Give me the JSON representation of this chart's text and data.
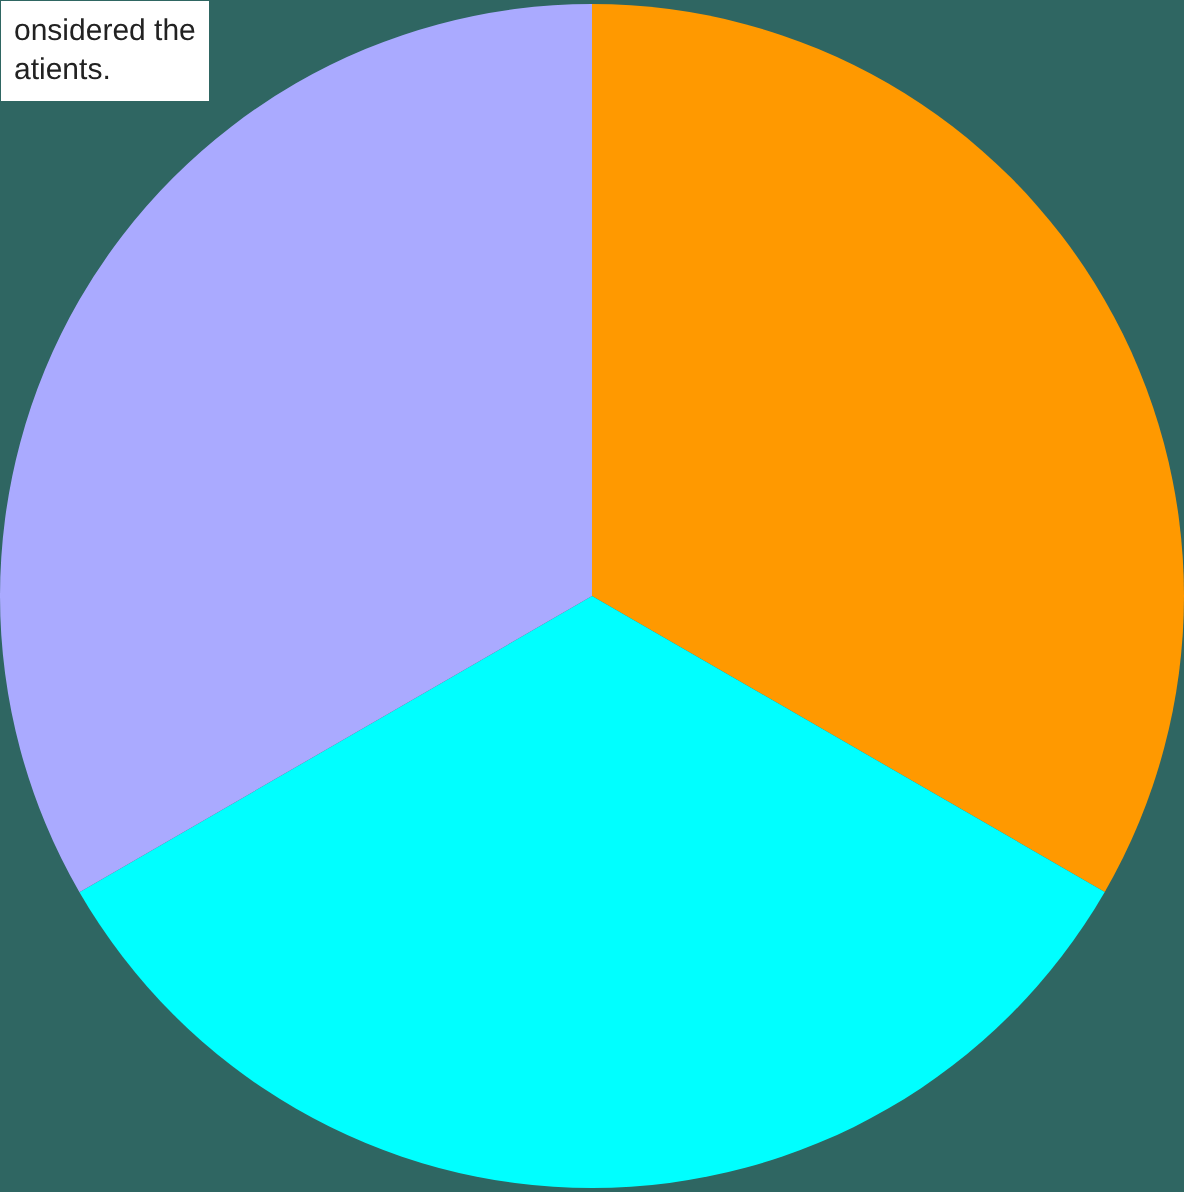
{
  "chart_data": {
    "type": "pie",
    "categories": [
      null,
      null,
      null
    ],
    "values": [
      33.33,
      33.33,
      33.34
    ],
    "colors": [
      "#ff9900",
      "#00ffff",
      "#aaaaff"
    ],
    "annotations": [
      "onsidered the\natients."
    ],
    "legend": false
  }
}
